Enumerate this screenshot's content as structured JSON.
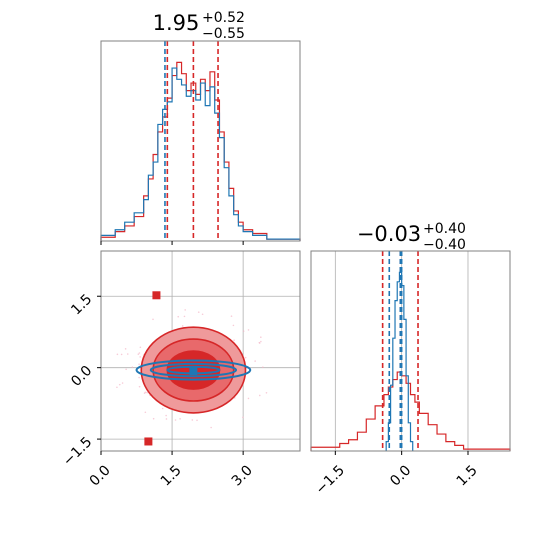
{
  "figure": {
    "titles": [
      {
        "value": "1.95",
        "upper": "+0.52",
        "lower": "−0.55"
      },
      {
        "value": "−0.03",
        "upper": "+0.40",
        "lower": "−0.40"
      }
    ]
  },
  "colors": {
    "red": "#d62728",
    "blue": "#1f77b4",
    "red_fill_outer": "#ef9a9b",
    "red_fill_mid": "#e8696b",
    "red_fill_inner": "#d62728",
    "grid": "#b0b0b0",
    "frame": "#808080"
  },
  "chart_data": [
    {
      "type": "histogram",
      "panel": "top-left",
      "x_range": [
        0,
        4.2
      ],
      "x_ticks": [
        0.0,
        1.5,
        3.0
      ],
      "vlines": {
        "red": [
          1.4,
          1.95,
          2.47
        ],
        "blue": [
          1.35
        ]
      },
      "series": [
        {
          "color": "red",
          "bin_edges": [
            0.0,
            0.3,
            0.5,
            0.7,
            0.9,
            1.0,
            1.1,
            1.2,
            1.3,
            1.4,
            1.5,
            1.6,
            1.7,
            1.8,
            1.9,
            2.0,
            2.1,
            2.2,
            2.3,
            2.4,
            2.5,
            2.6,
            2.7,
            2.8,
            2.9,
            3.0,
            3.2,
            3.5,
            4.2
          ],
          "counts": [
            0.02,
            0.05,
            0.08,
            0.13,
            0.24,
            0.33,
            0.46,
            0.58,
            0.66,
            0.76,
            0.88,
            0.95,
            0.89,
            0.8,
            0.84,
            0.78,
            0.86,
            0.8,
            0.9,
            0.75,
            0.58,
            0.42,
            0.28,
            0.16,
            0.1,
            0.06,
            0.04,
            0.01
          ]
        },
        {
          "color": "blue",
          "bin_edges": [
            0.0,
            0.3,
            0.5,
            0.7,
            0.9,
            1.0,
            1.1,
            1.2,
            1.3,
            1.4,
            1.5,
            1.6,
            1.7,
            1.8,
            1.9,
            2.0,
            2.1,
            2.2,
            2.3,
            2.4,
            2.5,
            2.6,
            2.7,
            2.8,
            2.9,
            3.0,
            3.2,
            3.5,
            4.2
          ],
          "counts": [
            0.03,
            0.06,
            0.1,
            0.15,
            0.22,
            0.35,
            0.42,
            0.62,
            0.7,
            0.74,
            0.92,
            0.86,
            0.83,
            0.77,
            0.8,
            0.75,
            0.84,
            0.72,
            0.82,
            0.68,
            0.55,
            0.39,
            0.24,
            0.14,
            0.08,
            0.05,
            0.03,
            0.01
          ]
        }
      ]
    },
    {
      "type": "contour",
      "panel": "bottom-left",
      "x_range": [
        0,
        4.2
      ],
      "y_range": [
        -1.75,
        2.45
      ],
      "x_ticks": [
        0.0,
        1.5,
        3.0
      ],
      "y_ticks": [
        -1.5,
        0.0,
        1.5
      ],
      "x_tick_labels": [
        "0.0",
        "1.5",
        "3.0"
      ],
      "y_tick_labels": [
        "−1.5",
        "0.0",
        "1.5"
      ],
      "grid": true,
      "red_contours": [
        {
          "level": "outer",
          "cx": 1.95,
          "cy": -0.05,
          "rx": 1.1,
          "ry": 0.9
        },
        {
          "level": "mid",
          "cx": 1.95,
          "cy": -0.05,
          "rx": 0.85,
          "ry": 0.65
        },
        {
          "level": "inner",
          "cx": 1.95,
          "cy": -0.05,
          "rx": 0.55,
          "ry": 0.4
        }
      ],
      "blue_contours": [
        {
          "cx": 1.95,
          "cy": -0.05,
          "rx": 1.2,
          "ry": 0.2
        },
        {
          "cx": 1.95,
          "cy": -0.05,
          "rx": 0.9,
          "ry": 0.13
        },
        {
          "cx": 1.95,
          "cy": -0.05,
          "rx": 0.55,
          "ry": 0.07
        }
      ],
      "markers": [
        {
          "color": "red",
          "x": 1.17,
          "y": 1.52
        },
        {
          "color": "red",
          "x": 1.0,
          "y": -1.55
        },
        {
          "color": "blue",
          "x": 1.95,
          "y": -0.07
        }
      ]
    },
    {
      "type": "histogram",
      "panel": "bottom-right",
      "x_range": [
        -2.05,
        2.45
      ],
      "x_ticks": [
        -1.5,
        0.0,
        1.5
      ],
      "x_tick_labels": [
        "−1.5",
        "0.0",
        "1.5"
      ],
      "grid": true,
      "vlines": {
        "red": [
          -0.43,
          -0.03,
          0.37
        ],
        "blue": [
          -0.28,
          -0.03,
          0.0
        ]
      },
      "series": [
        {
          "color": "red",
          "bin_edges": [
            -2.05,
            -1.4,
            -1.2,
            -1.0,
            -0.8,
            -0.6,
            -0.4,
            -0.3,
            -0.2,
            -0.1,
            0.0,
            0.1,
            0.2,
            0.3,
            0.4,
            0.6,
            0.8,
            1.0,
            1.2,
            1.4,
            2.45
          ],
          "counts": [
            0.02,
            0.04,
            0.06,
            0.1,
            0.17,
            0.24,
            0.3,
            0.34,
            0.38,
            0.42,
            0.4,
            0.36,
            0.3,
            0.26,
            0.2,
            0.14,
            0.09,
            0.05,
            0.03,
            0.01
          ]
        },
        {
          "color": "blue",
          "bin_edges": [
            -0.35,
            -0.3,
            -0.25,
            -0.2,
            -0.15,
            -0.1,
            -0.05,
            0.0,
            0.05,
            0.1,
            0.15,
            0.2,
            0.25
          ],
          "counts": [
            0.05,
            0.15,
            0.35,
            0.6,
            0.8,
            0.9,
            0.95,
            0.88,
            0.7,
            0.4,
            0.15,
            0.05
          ]
        }
      ]
    }
  ]
}
